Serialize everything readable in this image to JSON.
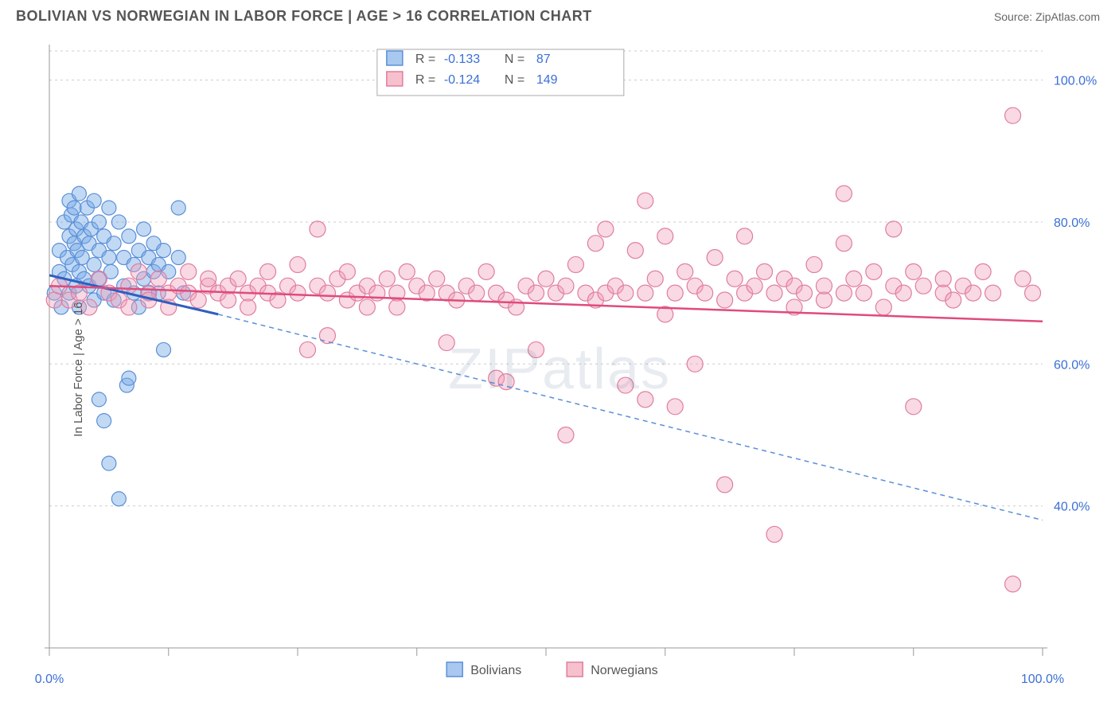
{
  "header": {
    "title": "BOLIVIAN VS NORWEGIAN IN LABOR FORCE | AGE > 16 CORRELATION CHART",
    "source": "Source: ZipAtlas.com"
  },
  "watermark": "ZIPatlas",
  "chart": {
    "type": "scatter",
    "ylabel": "In Labor Force | Age > 16",
    "xlim": [
      0,
      100
    ],
    "ylim": [
      20,
      105
    ],
    "xtick_positions": [
      0,
      12,
      25,
      37,
      50,
      62,
      75,
      87,
      100
    ],
    "xtick_labels_show": {
      "0": "0.0%",
      "100": "100.0%"
    },
    "ytick_positions": [
      40,
      60,
      80,
      100
    ],
    "ytick_labels": [
      "40.0%",
      "60.0%",
      "80.0%",
      "100.0%"
    ],
    "grid_color": "#cccccc",
    "axis_color": "#999999",
    "background_color": "#ffffff",
    "legend_top": {
      "border_color": "#aaaaaa",
      "bg_color": "#ffffff",
      "rows": [
        {
          "swatch_fill": "#a8c8f0",
          "swatch_stroke": "#5b8fd8",
          "r_label": "R =",
          "r_value": "-0.133",
          "n_label": "N =",
          "n_value": "87"
        },
        {
          "swatch_fill": "#f7c0cd",
          "swatch_stroke": "#e07da0",
          "r_label": "R =",
          "r_value": "-0.124",
          "n_label": "N =",
          "n_value": "149"
        }
      ],
      "label_color": "#555555",
      "value_color": "#3b6fd6"
    },
    "legend_bottom": {
      "items": [
        {
          "swatch_fill": "#a8c8f0",
          "swatch_stroke": "#5b8fd8",
          "label": "Bolivians"
        },
        {
          "swatch_fill": "#f7c0cd",
          "swatch_stroke": "#e07da0",
          "label": "Norwegians"
        }
      ],
      "label_color": "#555555"
    },
    "series": [
      {
        "name": "Bolivians",
        "marker_fill": "rgba(120,170,230,0.45)",
        "marker_stroke": "#5b8fd8",
        "marker_r": 9,
        "trend_solid": {
          "x1": 0,
          "y1": 72.5,
          "x2": 17,
          "y2": 67,
          "color": "#2f5fc0",
          "width": 3
        },
        "trend_dash": {
          "x1": 17,
          "y1": 67,
          "x2": 100,
          "y2": 38,
          "color": "#5b8fd8",
          "width": 1.5,
          "dash": "6,5"
        },
        "points": [
          [
            0.5,
            70
          ],
          [
            1,
            73
          ],
          [
            1,
            76
          ],
          [
            1.2,
            68
          ],
          [
            1.5,
            80
          ],
          [
            1.5,
            72
          ],
          [
            1.8,
            75
          ],
          [
            2,
            83
          ],
          [
            2,
            78
          ],
          [
            2,
            70
          ],
          [
            2.2,
            81
          ],
          [
            2.3,
            74
          ],
          [
            2.5,
            77
          ],
          [
            2.5,
            82
          ],
          [
            2.7,
            71
          ],
          [
            2.7,
            79
          ],
          [
            2.8,
            76
          ],
          [
            3,
            84
          ],
          [
            3,
            73
          ],
          [
            3,
            68
          ],
          [
            3.2,
            80
          ],
          [
            3.3,
            75
          ],
          [
            3.5,
            78
          ],
          [
            3.5,
            72
          ],
          [
            3.8,
            82
          ],
          [
            4,
            77
          ],
          [
            4,
            71
          ],
          [
            4.2,
            79
          ],
          [
            4.5,
            83
          ],
          [
            4.5,
            74
          ],
          [
            4.5,
            69
          ],
          [
            5,
            76
          ],
          [
            5,
            80
          ],
          [
            5,
            72
          ],
          [
            5,
            55
          ],
          [
            5.5,
            78
          ],
          [
            5.5,
            70
          ],
          [
            5.5,
            52
          ],
          [
            6,
            46
          ],
          [
            6,
            75
          ],
          [
            6,
            82
          ],
          [
            6.2,
            73
          ],
          [
            6.5,
            77
          ],
          [
            6.5,
            69
          ],
          [
            7,
            41
          ],
          [
            7,
            80
          ],
          [
            7.5,
            75
          ],
          [
            7.5,
            71
          ],
          [
            7.8,
            57
          ],
          [
            8,
            58
          ],
          [
            8,
            78
          ],
          [
            8.5,
            74
          ],
          [
            8.5,
            70
          ],
          [
            9,
            76
          ],
          [
            9,
            68
          ],
          [
            9.5,
            79
          ],
          [
            9.5,
            72
          ],
          [
            10,
            75
          ],
          [
            10,
            70
          ],
          [
            10.5,
            77
          ],
          [
            10.5,
            73
          ],
          [
            11,
            74
          ],
          [
            11,
            70
          ],
          [
            11.5,
            76
          ],
          [
            11.5,
            62
          ],
          [
            12,
            73
          ],
          [
            13,
            82
          ],
          [
            13,
            75
          ],
          [
            13.5,
            70
          ]
        ]
      },
      {
        "name": "Norwegians",
        "marker_fill": "rgba(240,160,185,0.40)",
        "marker_stroke": "#e07da0",
        "marker_r": 10,
        "trend_solid": {
          "x1": 0,
          "y1": 71,
          "x2": 100,
          "y2": 66,
          "color": "#e04b7b",
          "width": 2.5
        },
        "points": [
          [
            0.5,
            69
          ],
          [
            1,
            71
          ],
          [
            2,
            69
          ],
          [
            3,
            70
          ],
          [
            4,
            68
          ],
          [
            5,
            72
          ],
          [
            6,
            70
          ],
          [
            7,
            69
          ],
          [
            8,
            71
          ],
          [
            8,
            68
          ],
          [
            9,
            73
          ],
          [
            10,
            70
          ],
          [
            10,
            69
          ],
          [
            11,
            72
          ],
          [
            12,
            70
          ],
          [
            12,
            68
          ],
          [
            13,
            71
          ],
          [
            14,
            70
          ],
          [
            14,
            73
          ],
          [
            15,
            69
          ],
          [
            16,
            71
          ],
          [
            16,
            72
          ],
          [
            17,
            70
          ],
          [
            18,
            71
          ],
          [
            18,
            69
          ],
          [
            19,
            72
          ],
          [
            20,
            70
          ],
          [
            20,
            68
          ],
          [
            21,
            71
          ],
          [
            22,
            70
          ],
          [
            22,
            73
          ],
          [
            23,
            69
          ],
          [
            24,
            71
          ],
          [
            25,
            70
          ],
          [
            25,
            74
          ],
          [
            26,
            62
          ],
          [
            27,
            71
          ],
          [
            27,
            79
          ],
          [
            28,
            70
          ],
          [
            28,
            64
          ],
          [
            29,
            72
          ],
          [
            30,
            69
          ],
          [
            30,
            73
          ],
          [
            31,
            70
          ],
          [
            32,
            68
          ],
          [
            32,
            71
          ],
          [
            33,
            70
          ],
          [
            34,
            72
          ],
          [
            35,
            70
          ],
          [
            35,
            68
          ],
          [
            36,
            73
          ],
          [
            37,
            71
          ],
          [
            38,
            70
          ],
          [
            39,
            72
          ],
          [
            40,
            63
          ],
          [
            40,
            70
          ],
          [
            41,
            69
          ],
          [
            42,
            71
          ],
          [
            43,
            70
          ],
          [
            44,
            73
          ],
          [
            45,
            58
          ],
          [
            45,
            70
          ],
          [
            46,
            57.5
          ],
          [
            46,
            69
          ],
          [
            47,
            68
          ],
          [
            48,
            71
          ],
          [
            49,
            62
          ],
          [
            49,
            70
          ],
          [
            50,
            72
          ],
          [
            51,
            70
          ],
          [
            52,
            50
          ],
          [
            52,
            71
          ],
          [
            53,
            74
          ],
          [
            54,
            70
          ],
          [
            55,
            77
          ],
          [
            55,
            69
          ],
          [
            56,
            79
          ],
          [
            56,
            70
          ],
          [
            57,
            71
          ],
          [
            58,
            70
          ],
          [
            58,
            57
          ],
          [
            59,
            76
          ],
          [
            60,
            83
          ],
          [
            60,
            70
          ],
          [
            60,
            55
          ],
          [
            61,
            72
          ],
          [
            62,
            67
          ],
          [
            62,
            78
          ],
          [
            63,
            70
          ],
          [
            63,
            54
          ],
          [
            64,
            73
          ],
          [
            65,
            60
          ],
          [
            65,
            71
          ],
          [
            66,
            70
          ],
          [
            67,
            75
          ],
          [
            68,
            69
          ],
          [
            68,
            43
          ],
          [
            69,
            72
          ],
          [
            70,
            78
          ],
          [
            70,
            70
          ],
          [
            71,
            71
          ],
          [
            72,
            73
          ],
          [
            73,
            70
          ],
          [
            73,
            36
          ],
          [
            74,
            72
          ],
          [
            75,
            68
          ],
          [
            75,
            71
          ],
          [
            76,
            70
          ],
          [
            77,
            74
          ],
          [
            78,
            69
          ],
          [
            78,
            71
          ],
          [
            80,
            84
          ],
          [
            80,
            70
          ],
          [
            80,
            77
          ],
          [
            81,
            72
          ],
          [
            82,
            70
          ],
          [
            83,
            73
          ],
          [
            84,
            68
          ],
          [
            85,
            71
          ],
          [
            85,
            79
          ],
          [
            86,
            70
          ],
          [
            87,
            73
          ],
          [
            87,
            54
          ],
          [
            88,
            71
          ],
          [
            90,
            70
          ],
          [
            90,
            72
          ],
          [
            91,
            69
          ],
          [
            92,
            71
          ],
          [
            93,
            70
          ],
          [
            94,
            73
          ],
          [
            95,
            70
          ],
          [
            97,
            29
          ],
          [
            97,
            95
          ],
          [
            98,
            72
          ],
          [
            99,
            70
          ]
        ]
      }
    ]
  }
}
